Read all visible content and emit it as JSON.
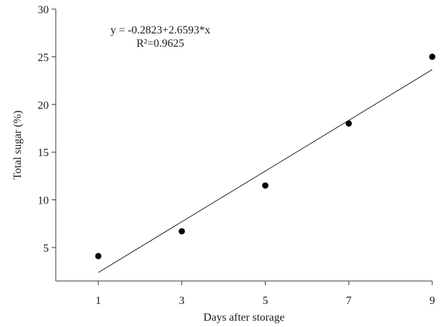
{
  "chart_data": {
    "type": "scatter",
    "title": "",
    "xlabel": "Days after storage",
    "ylabel": "Total sugar (%)",
    "x": [
      1,
      3,
      5,
      7,
      9
    ],
    "series": [
      {
        "name": "Total sugar",
        "values": [
          4.1,
          6.7,
          11.5,
          18.0,
          25.0
        ]
      }
    ],
    "trendline": {
      "type": "linear",
      "intercept": -0.2823,
      "slope": 2.6593,
      "x_range": [
        1,
        9
      ]
    },
    "annotations": [
      "y = -0.2823+2.6593*x",
      "R²=0.9625"
    ],
    "xticks": [
      1,
      3,
      5,
      7,
      9
    ],
    "yticks": [
      5,
      10,
      15,
      20,
      25,
      30
    ],
    "xlim": [
      -0.03,
      9
    ],
    "ylim": [
      1.5,
      30
    ],
    "grid": false,
    "legend": "none"
  },
  "labels": {
    "equation": "y = -0.2823+2.6593*x",
    "r_squared": "R²=0.9625",
    "xlabel": "Days after storage",
    "ylabel": "Total sugar (%)"
  },
  "colors": {
    "axis": "#333333",
    "marker": "#000000",
    "line": "#1a1a1a"
  }
}
